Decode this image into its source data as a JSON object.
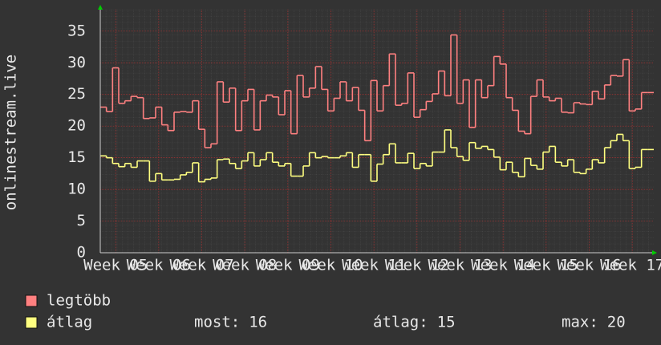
{
  "chart_data": {
    "type": "step",
    "y_label": "onlinestream.live",
    "xlim": [
      0,
      90
    ],
    "xticks": [
      {
        "value": 2.5,
        "label": "Week 05"
      },
      {
        "value": 9.5,
        "label": "Week 06"
      },
      {
        "value": 16.5,
        "label": "Week 07"
      },
      {
        "value": 23.5,
        "label": "Week 08"
      },
      {
        "value": 30.5,
        "label": "Week 09"
      },
      {
        "value": 37.5,
        "label": "Week 10"
      },
      {
        "value": 44.5,
        "label": "Week 11"
      },
      {
        "value": 51.5,
        "label": "Week 12"
      },
      {
        "value": 58.5,
        "label": "Week 13"
      },
      {
        "value": 65.5,
        "label": "Week 14"
      },
      {
        "value": 72.5,
        "label": "Week 15"
      },
      {
        "value": 79.5,
        "label": "Week 16"
      },
      {
        "value": 86.5,
        "label": "Week 17"
      }
    ],
    "ylim": [
      0,
      38.4
    ],
    "yticks": [
      0,
      5,
      10,
      15,
      20,
      25,
      30,
      35
    ],
    "grid": true,
    "series": [
      {
        "name": "legtöbb",
        "color": "#ff8080",
        "values": [
          23,
          22.3,
          29.2,
          23.6,
          24,
          24.7,
          24.5,
          21.2,
          21.3,
          23,
          20.2,
          19.3,
          22.2,
          22.3,
          22.2,
          24,
          19.5,
          16.6,
          17.2,
          27,
          23.8,
          26,
          19.3,
          24,
          25.8,
          19.4,
          24,
          24.9,
          24.6,
          21.8,
          25.6,
          18.8,
          28,
          24.6,
          26,
          29.4,
          25.8,
          22.4,
          24.4,
          27,
          24,
          26.1,
          22.5,
          17.7,
          27.2,
          22.4,
          26.4,
          31.4,
          23.3,
          23.6,
          28.4,
          21.4,
          22.6,
          23.9,
          25.1,
          28.7,
          24.8,
          34.4,
          23.6,
          27.3,
          19.8,
          27.3,
          24.5,
          26.4,
          31,
          29.8,
          24.5,
          22.5,
          19.2,
          18.8,
          24.7,
          27.3,
          24.6,
          24,
          24.4,
          22.2,
          22.1,
          23.7,
          23.5,
          23.4,
          25.5,
          24.3,
          26.5,
          28,
          27.9,
          30.5,
          22.4,
          22.7,
          25.3,
          25.3
        ]
      },
      {
        "name": "átlag",
        "color": "#ffff80",
        "values": [
          15.3,
          15,
          14.1,
          13.6,
          14.1,
          13.5,
          14.5,
          14.5,
          11.3,
          12.5,
          11.5,
          11.5,
          11.6,
          12.3,
          12.7,
          14.2,
          11.2,
          11.6,
          11.8,
          14.7,
          14.8,
          14.1,
          13.3,
          14.5,
          15.8,
          13.7,
          14.7,
          15.8,
          14.3,
          13.7,
          14.1,
          12.1,
          12.1,
          13.7,
          15.8,
          15,
          15.2,
          15,
          15,
          15.3,
          15.8,
          13.5,
          15.5,
          15.5,
          11.3,
          14,
          15.5,
          17.2,
          14.2,
          14.2,
          15.7,
          13.3,
          14.1,
          13.7,
          15.9,
          15.9,
          19.4,
          16.6,
          15.2,
          14.6,
          17.4,
          16.5,
          16.8,
          16.3,
          15.1,
          13.1,
          14.3,
          12.7,
          12,
          14.9,
          13.8,
          13.2,
          15.9,
          16.8,
          14.3,
          13.7,
          14.7,
          12.7,
          12.5,
          13.2,
          14.7,
          14.2,
          16.6,
          17.7,
          18.7,
          17.7,
          13.3,
          13.5,
          16.3,
          16.3
        ]
      }
    ],
    "stats": [
      {
        "label": "most:",
        "value": 16
      },
      {
        "label": "átlag:",
        "value": 15
      },
      {
        "label": "max:",
        "value": 20
      }
    ]
  }
}
